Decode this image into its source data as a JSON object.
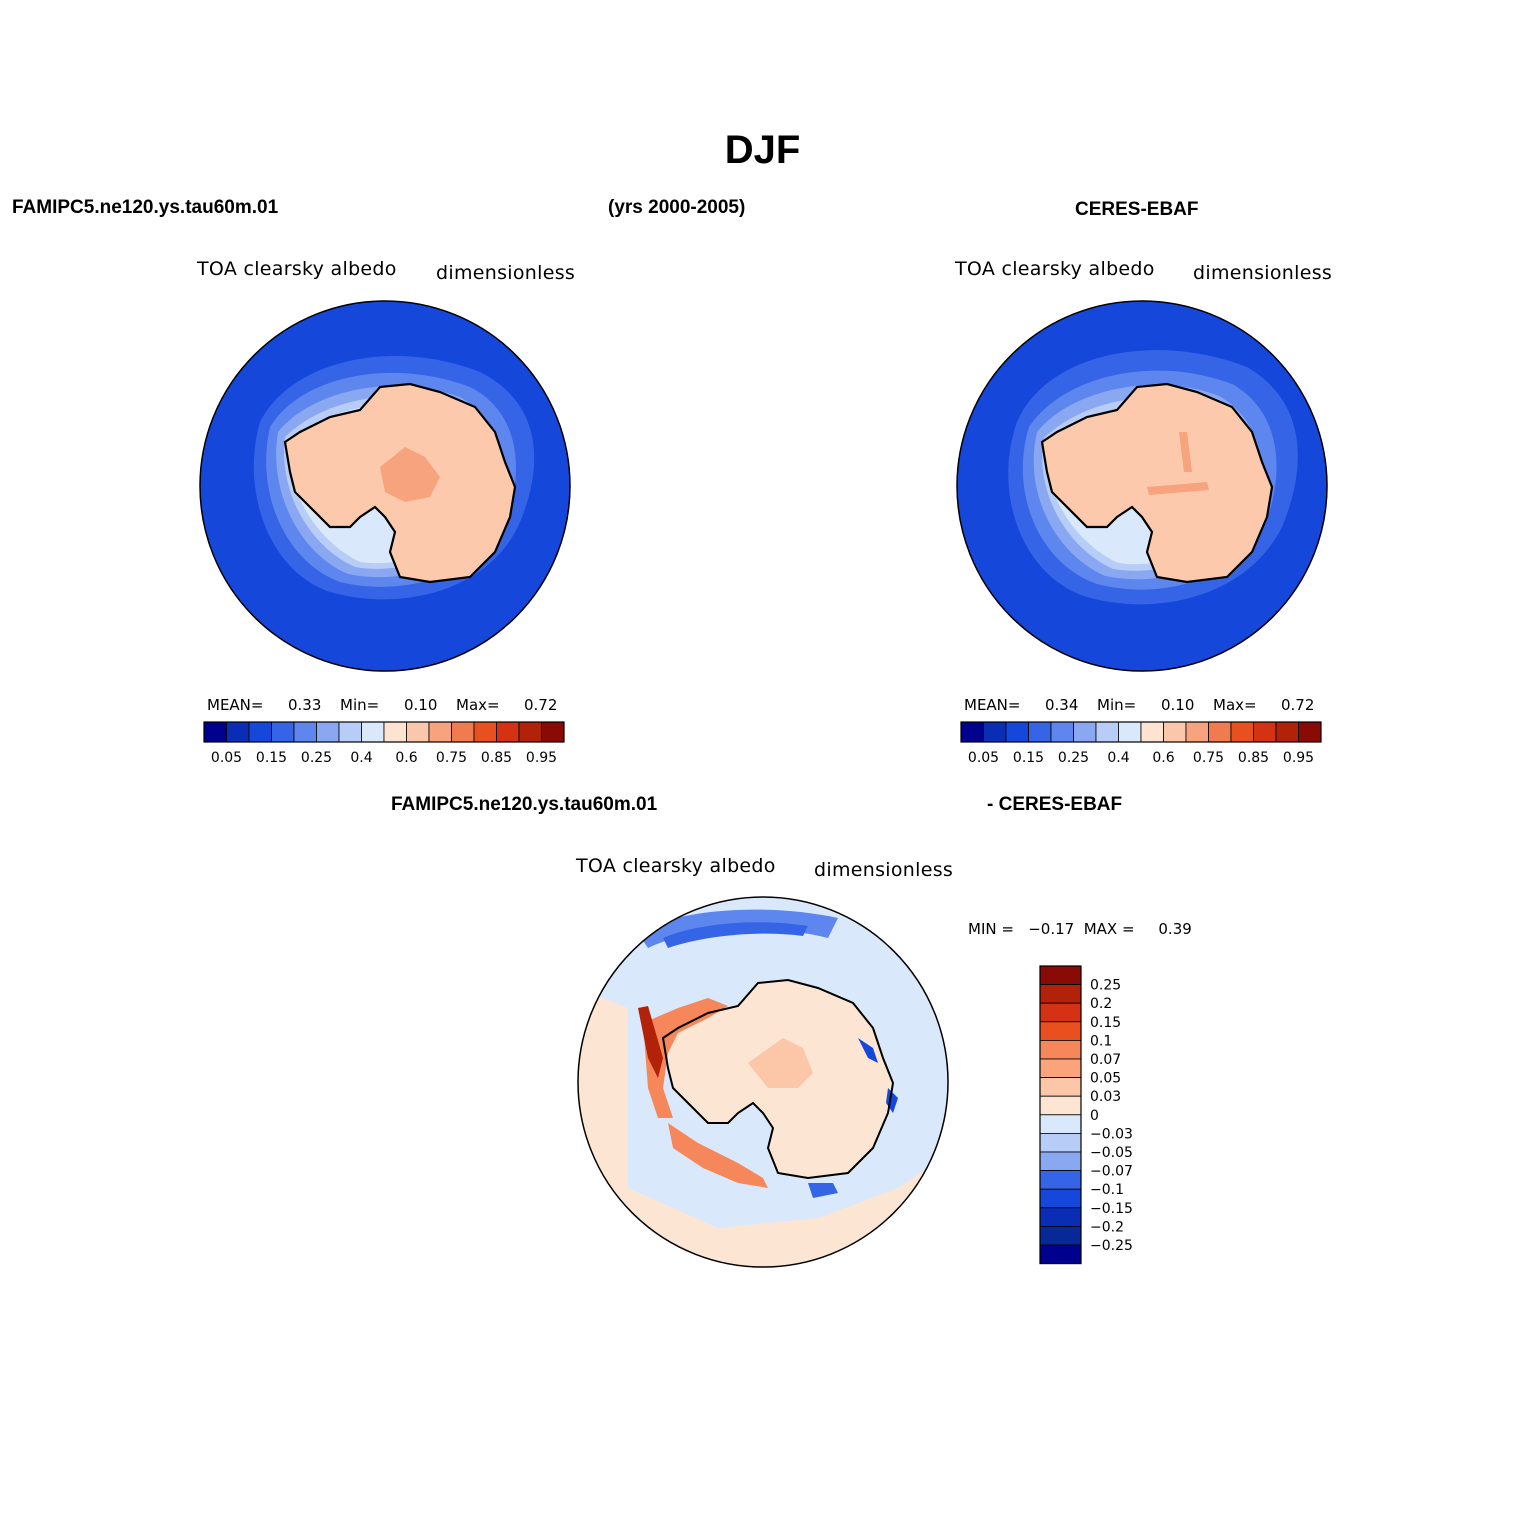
{
  "title": "DJF",
  "header": {
    "left": "FAMIPC5.ne120.ys.tau60m.01",
    "center": "(yrs 2000-2005)",
    "right": "CERES-EBAF"
  },
  "panels": [
    {
      "id": "model",
      "variable": "TOA clearsky albedo",
      "units": "dimensionless",
      "stats": {
        "mean_label": "MEAN=",
        "mean": "0.33",
        "min_label": "Min=",
        "min": "0.10",
        "max_label": "Max=",
        "max": "0.72"
      }
    },
    {
      "id": "obs",
      "variable": "TOA clearsky albedo",
      "units": "dimensionless",
      "stats": {
        "mean_label": "MEAN=",
        "mean": "0.34",
        "min_label": "Min=",
        "min": "0.10",
        "max_label": "Max=",
        "max": "0.72"
      }
    }
  ],
  "diff": {
    "title_left": "FAMIPC5.ne120.ys.tau60m.01",
    "title_right": "- CERES-EBAF",
    "variable": "TOA clearsky albedo",
    "units": "dimensionless",
    "minmax": "MIN =   −0.17  MAX =     0.39"
  },
  "colorbar_main": {
    "colors": [
      "#00008f",
      "#0a2db5",
      "#1547db",
      "#3565e6",
      "#5d86ee",
      "#8aa8f2",
      "#b7cdf8",
      "#d9e8fb",
      "#fde3d0",
      "#fbc7aa",
      "#f6a37e",
      "#ef7b4e",
      "#e8501f",
      "#d43212",
      "#b22208",
      "#8a0a05"
    ],
    "labels": [
      "0.05",
      "0.15",
      "0.25",
      "0.4",
      "0.6",
      "0.75",
      "0.85",
      "0.95"
    ]
  },
  "colorbar_diff": {
    "colors_top_to_bottom": [
      "#8a0a05",
      "#b22208",
      "#d43212",
      "#e8501f",
      "#f6875a",
      "#fba47c",
      "#fcc6a8",
      "#fde5d4",
      "#d9e8fb",
      "#b7cdf8",
      "#8aa8f2",
      "#3565e6",
      "#1547db",
      "#0a2db5",
      "#062899",
      "#00008f"
    ],
    "labels": [
      "0.25",
      "0.2",
      "0.15",
      "0.1",
      "0.07",
      "0.05",
      "0.03",
      "0",
      "−0.03",
      "−0.05",
      "−0.07",
      "−0.1",
      "−0.15",
      "−0.2",
      "−0.25"
    ]
  }
}
